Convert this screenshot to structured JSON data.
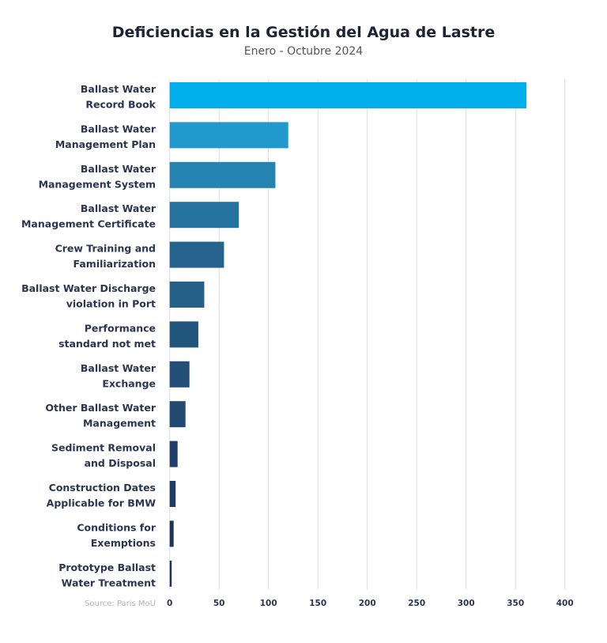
{
  "chart_data": {
    "type": "bar",
    "orientation": "horizontal",
    "title": "Deficiencias en la Gestión del Agua de Lastre",
    "subtitle": "Enero - Octubre 2024",
    "source": "Source: Paris MoU",
    "categories": [
      [
        "Ballast Water",
        "Record Book"
      ],
      [
        "Ballast Water",
        "Management Plan"
      ],
      [
        "Ballast Water",
        "Management System"
      ],
      [
        "Ballast Water",
        "Management Certificate"
      ],
      [
        "Crew Training and",
        "Familiarization"
      ],
      [
        "Ballast Water Discharge",
        "violation in Port"
      ],
      [
        "Performance",
        "standard not met"
      ],
      [
        "Ballast Water",
        "Exchange"
      ],
      [
        "Other Ballast Water",
        "Management"
      ],
      [
        "Sediment Removal",
        "and Disposal"
      ],
      [
        "Construction Dates",
        "Applicable for BMW"
      ],
      [
        "Conditions for",
        "Exemptions"
      ],
      [
        "Prototype Ballast",
        "Water Treatment"
      ]
    ],
    "values": [
      361,
      120,
      107,
      70,
      55,
      35,
      29,
      20,
      16,
      8,
      6,
      4,
      2
    ],
    "colors": [
      "#00aeea",
      "#2299cc",
      "#2483b0",
      "#27739f",
      "#26648f",
      "#256087",
      "#23567d",
      "#234f76",
      "#224a70",
      "#213f66",
      "#213b60",
      "#1f365a",
      "#1e3355"
    ],
    "xlim": [
      0,
      400
    ],
    "xticks": [
      0,
      50,
      100,
      150,
      200,
      250,
      300,
      350,
      400
    ],
    "grid": true,
    "legend": "none"
  }
}
